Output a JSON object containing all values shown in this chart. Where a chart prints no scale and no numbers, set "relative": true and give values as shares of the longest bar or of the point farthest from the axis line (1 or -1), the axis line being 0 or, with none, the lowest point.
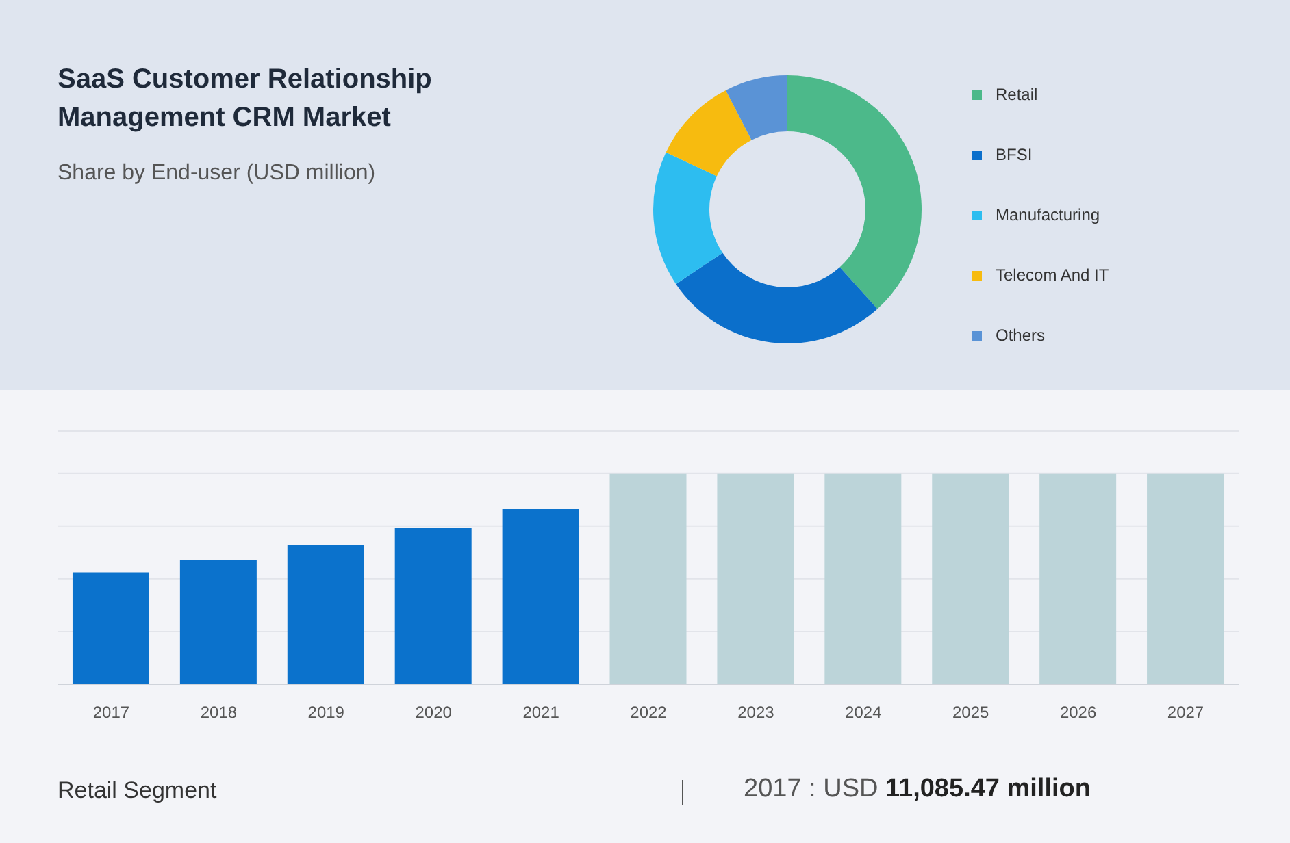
{
  "chart_data": [
    {
      "type": "donut",
      "title": "SaaS Customer Relationship Management CRM Market",
      "subtitle": "Share by End-user (USD million)",
      "categories": [
        "Retail",
        "BFSI",
        "Manufacturing",
        "Telecom And IT",
        "Others"
      ],
      "values": [
        38.3,
        27.3,
        16.4,
        10.4,
        7.6
      ],
      "colors": [
        "#4cb98a",
        "#0b6fcb",
        "#2dbdf0",
        "#f7bb0f",
        "#5a93d6"
      ],
      "legend": "right"
    },
    {
      "type": "bar",
      "relative": true,
      "categories": [
        "2017",
        "2018",
        "2019",
        "2020",
        "2021",
        "2022",
        "2023",
        "2024",
        "2025",
        "2026",
        "2027"
      ],
      "values": [
        0.53,
        0.59,
        0.66,
        0.74,
        0.83,
        1,
        1,
        1,
        1,
        1,
        1
      ],
      "colors": [
        "#0b72cc",
        "#0b72cc",
        "#0b72cc",
        "#0b72cc",
        "#0b72cc",
        "#bcd4d9",
        "#bcd4d9",
        "#bcd4d9",
        "#bcd4d9",
        "#bcd4d9",
        "#bcd4d9"
      ],
      "grid": "y",
      "annotations": [
        "Retail Segment",
        "2017 : USD 11,085.47 million"
      ]
    }
  ]
}
